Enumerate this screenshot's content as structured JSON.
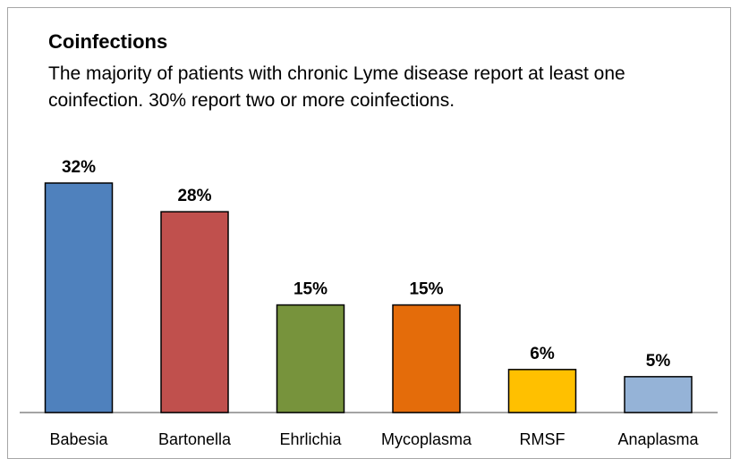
{
  "chart_data": {
    "type": "bar",
    "title": "Coinfections",
    "subtitle": "The majority of patients with chronic Lyme disease report at least one coinfection. 30% report two or more coinfections.",
    "categories": [
      "Babesia",
      "Bartonella",
      "Ehrlichia",
      "Mycoplasma",
      "RMSF",
      "Anaplasma"
    ],
    "values": [
      32,
      28,
      15,
      15,
      6,
      5
    ],
    "value_labels": [
      "32%",
      "28%",
      "15%",
      "15%",
      "6%",
      "5%"
    ],
    "colors": [
      "#4f81bd",
      "#c0504d",
      "#77933c",
      "#e46c0a",
      "#ffc000",
      "#95b3d7"
    ],
    "ylim": [
      0,
      32
    ],
    "grid": false,
    "legend": "none"
  }
}
